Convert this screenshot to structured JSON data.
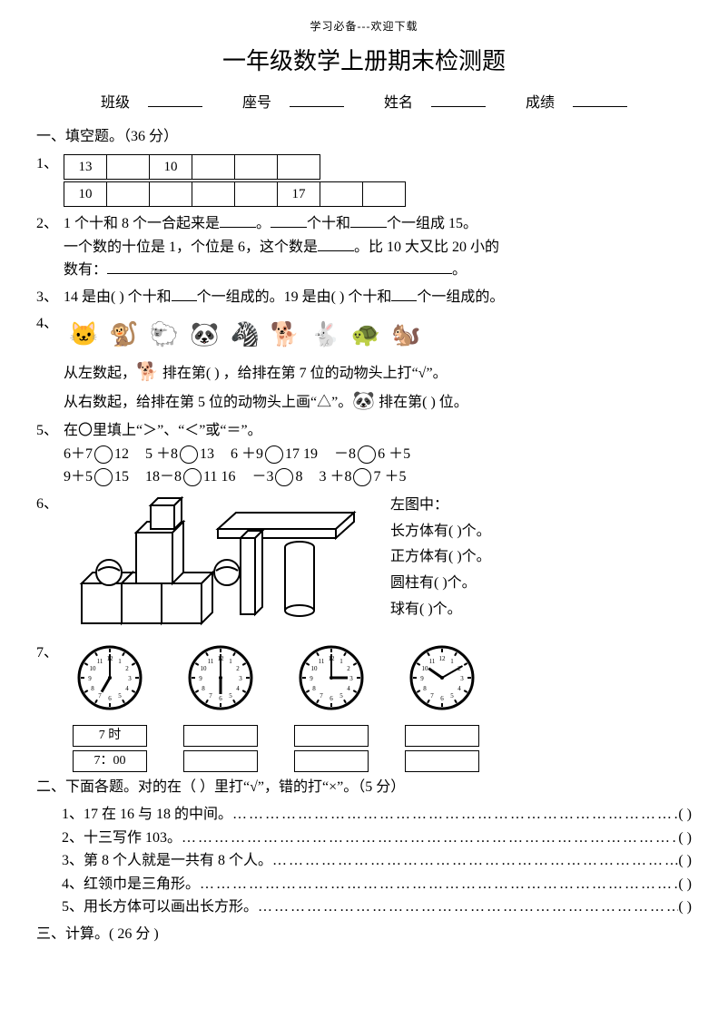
{
  "header_small": "学习必备---欢迎下载",
  "title": "一年级数学上册期末检测题",
  "fields": {
    "class": "班级",
    "seat": "座号",
    "name": "姓名",
    "score": "成绩"
  },
  "s1": {
    "heading": "一、填空题。（36 分）",
    "q1": {
      "num": "1、",
      "row1": [
        "13",
        "",
        "10",
        "",
        "",
        ""
      ],
      "row2": [
        "10",
        "",
        "",
        "",
        "",
        "17",
        "",
        ""
      ]
    },
    "q2": {
      "num": "2、",
      "l1a": "1 个十和 8 个一合起来是",
      "l1b": "。",
      "l1c": "个十和",
      "l1d": "个一组成 15。",
      "l2a": "一个数的十位是 1，个位是 6，这个数是",
      "l2b": "。比 10 大又比 20 小的",
      "l3a": "数有：",
      "l3b": "。"
    },
    "q3": {
      "num": "3、",
      "text_a": "14 是由(   ) 个十和",
      "text_b": "个一组成的。19 是由(  ) 个十和",
      "text_c": "个一组成的。"
    },
    "q4": {
      "num": "4、",
      "animals": [
        "🐱",
        "🐒",
        "🐑",
        "🐼",
        "🦓",
        "🐕",
        "🐇",
        "🐢",
        "🐿️"
      ],
      "l1a": "从左数起，",
      "l1_icon": "🐕",
      "l1b": " 排在第(    ) ，给排在第 7 位的动物头上打“√”。",
      "l2a": "从右数起，给排在第 5 位的动物头上画“△”。",
      "l2_icon": "🐼",
      "l2b": " 排在第(    )  位。"
    },
    "q5": {
      "num": "5、",
      "intro": "在〇里填上“＞”、“＜”或“＝”。",
      "r1": [
        "6＋7",
        "12",
        "5 ＋8",
        "13",
        "6 ＋9",
        "17 19",
        "－8",
        "6 ＋5"
      ],
      "r2": [
        "9＋5",
        "15",
        "18－8",
        "11 16",
        "－3",
        "8",
        "3 ＋8",
        "7 ＋5"
      ]
    },
    "q6": {
      "num": "6、",
      "t0": "左图中：",
      "t1": "长方体有(        )个。",
      "t2": "正方体有(        )个。",
      "t3": "圆柱有(        )个。",
      "t4": "球有(        )个。"
    },
    "q7": {
      "num": "7、",
      "clocks": [
        {
          "h": 7,
          "m": 0,
          "b1": "7 时",
          "b2": "7：00"
        },
        {
          "h": 6,
          "m": 0,
          "b1": "",
          "b2": ""
        },
        {
          "h": 3,
          "m": 0,
          "b1": "",
          "b2": ""
        },
        {
          "h": 10,
          "m": 10,
          "b1": "",
          "b2": ""
        }
      ]
    }
  },
  "s2": {
    "heading": "二、下面各题。对的在（    ）里打“√”，错的打“×”。（5 分）",
    "items": [
      "1、17  在  16  与  18 的中间。",
      "2、十三写作 103。",
      "3、第 8 个人就是一共有 8 个人。",
      "4、红领巾是三角形。",
      "5、用长方体可以画出长方形。"
    ],
    "paren": "(     )"
  },
  "s3": {
    "heading": "三、计算。( 26 分 )"
  },
  "colors": {
    "text": "#000000",
    "bg": "#ffffff",
    "line": "#000000"
  }
}
